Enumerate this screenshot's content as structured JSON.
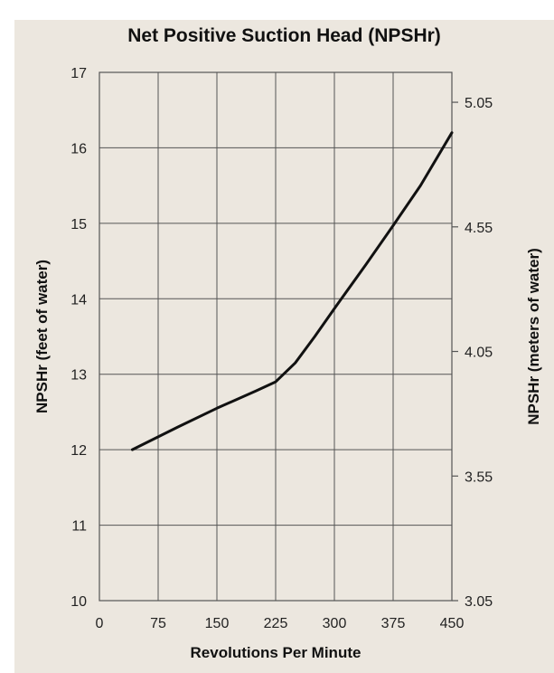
{
  "chart_data": {
    "type": "line",
    "title": "Net Positive Suction Head (NPSHr)",
    "xlabel": "Revolutions Per Minute",
    "ylabel": "NPSHr (feet of water)",
    "y2label": "NPSHr (meters of water)",
    "xlim": [
      0,
      450
    ],
    "ylim": [
      10,
      17
    ],
    "y2lim": [
      3.05,
      5.17
    ],
    "xticks": [
      0,
      75,
      150,
      225,
      300,
      375,
      450
    ],
    "yticks": [
      10,
      11,
      12,
      13,
      14,
      15,
      16,
      17
    ],
    "y2ticks": [
      3.05,
      3.55,
      4.05,
      4.55,
      5.05
    ],
    "grid": true,
    "series": [
      {
        "x": [
          42,
          100,
          150,
          200,
          225,
          250,
          275,
          300,
          340,
          375,
          410,
          450
        ],
        "y": [
          12.0,
          12.3,
          12.55,
          12.78,
          12.9,
          13.15,
          13.5,
          13.87,
          14.45,
          14.97,
          15.5,
          16.2
        ]
      }
    ],
    "colors": {
      "line": "#111111",
      "grid": "#555555",
      "background": "#ece7df"
    }
  }
}
